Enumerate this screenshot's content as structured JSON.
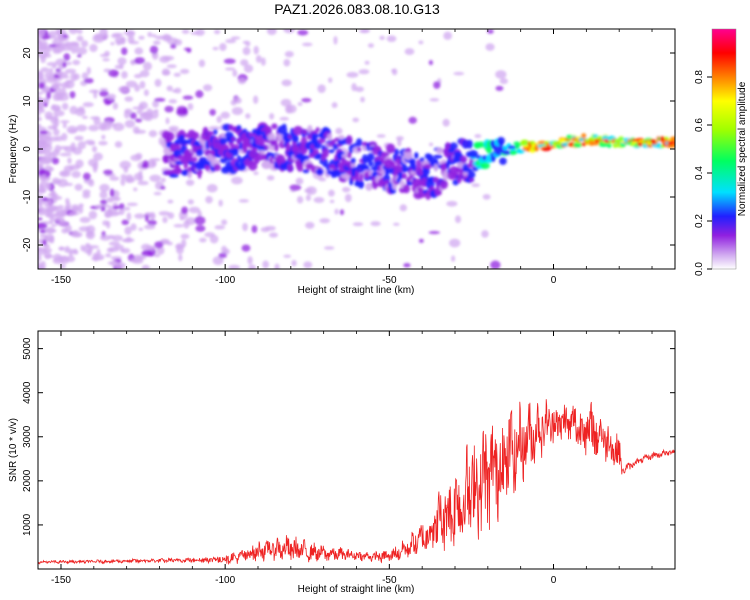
{
  "figure": {
    "title": "PAZ1.2026.083.08.10.G13"
  },
  "chart_data": [
    {
      "type": "heatmap",
      "title": "PAZ1.2026.083.08.10.G13",
      "xlabel": "Height of straight line (km)",
      "ylabel": "Frequency (Hz)",
      "xlim": [
        -157,
        37
      ],
      "ylim": [
        -25,
        25
      ],
      "xticks": [
        -150,
        -100,
        -50,
        0
      ],
      "yticks": [
        -20,
        -10,
        0,
        10,
        20
      ],
      "xtick_labels": [
        "-150",
        "-100",
        "-50",
        "0"
      ],
      "ytick_labels": [
        "-20",
        "-10",
        "0",
        "10",
        "20"
      ],
      "ridge": {
        "description": "doppler frequency ridge vs height",
        "x": [
          -115,
          -100,
          -85,
          -70,
          -60,
          -50,
          -40,
          -30,
          -20,
          -10,
          0,
          10,
          20,
          37
        ],
        "frequency": [
          -1.5,
          0,
          0.5,
          -0.5,
          -3,
          -4,
          -6,
          -3,
          -1,
          0.5,
          1,
          2,
          1.5,
          1.5
        ]
      },
      "colorbar": {
        "label": "Normalized spectral amplitude",
        "range": [
          0.0,
          1.0
        ],
        "ticks": [
          0.0,
          0.2,
          0.4,
          0.6,
          0.8
        ],
        "tick_labels": [
          "0.0",
          "0.2",
          "0.4",
          "0.6",
          "0.8"
        ],
        "colors": [
          "#ffffff",
          "#d0a8f0",
          "#9020e0",
          "#2020ff",
          "#00e0ff",
          "#00ff60",
          "#a0ff00",
          "#ffff00",
          "#ff8000",
          "#ff0000",
          "#ff0090"
        ]
      }
    },
    {
      "type": "line",
      "xlabel": "Height of straight line (km)",
      "ylabel": "SNR (10 * v/v)",
      "xlim": [
        -157,
        37
      ],
      "ylim": [
        0,
        5400
      ],
      "xticks": [
        -150,
        -100,
        -50,
        0
      ],
      "yticks": [
        1000,
        2000,
        3000,
        4000,
        5000
      ],
      "xtick_labels": [
        "-150",
        "-100",
        "-50",
        "0"
      ],
      "ytick_labels": [
        "1000",
        "2000",
        "3000",
        "4000",
        "5000"
      ],
      "series": [
        {
          "name": "SNR",
          "color": "#ee2222",
          "envelope_x": [
            -157,
            -140,
            -120,
            -110,
            -100,
            -95,
            -90,
            -85,
            -80,
            -75,
            -70,
            -65,
            -60,
            -55,
            -50,
            -45,
            -40,
            -35,
            -30,
            -25,
            -20,
            -15,
            -10,
            -5,
            0,
            5,
            10,
            15,
            20,
            21,
            25,
            30,
            37
          ],
          "baseline": [
            150,
            160,
            180,
            190,
            200,
            250,
            350,
            400,
            380,
            350,
            300,
            300,
            280,
            250,
            250,
            400,
            600,
            900,
            1200,
            1500,
            1800,
            2200,
            2600,
            3000,
            3200,
            3200,
            3000,
            2900,
            2500,
            2200,
            2400,
            2550,
            2650
          ],
          "amplitude": [
            40,
            50,
            60,
            80,
            150,
            200,
            300,
            350,
            400,
            300,
            250,
            200,
            150,
            150,
            200,
            300,
            500,
            900,
            1300,
            1600,
            1700,
            1500,
            1200,
            900,
            700,
            600,
            900,
            700,
            600,
            150,
            100,
            100,
            100
          ]
        }
      ]
    }
  ]
}
